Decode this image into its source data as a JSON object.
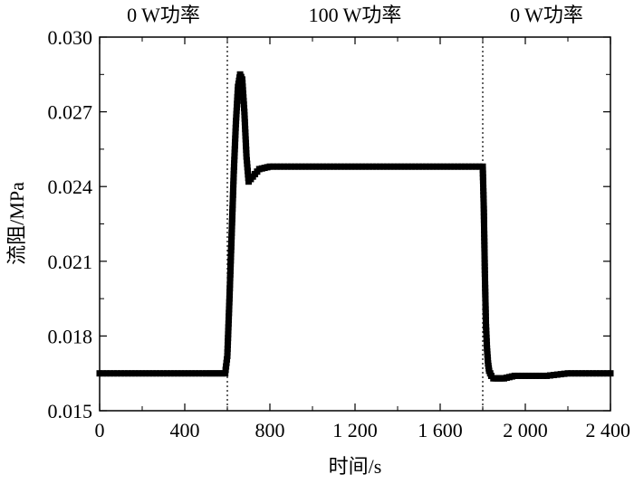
{
  "chart_data": {
    "type": "scatter",
    "title": "",
    "xlabel": "时间/s",
    "ylabel": "流阻/MPa",
    "xlim": [
      0,
      2400
    ],
    "ylim": [
      0.015,
      0.03
    ],
    "xticks": [
      0,
      400,
      800,
      1200,
      1600,
      2000,
      2400
    ],
    "xtick_labels": [
      "0",
      "400",
      "800",
      "1 200",
      "1 600",
      "2 000",
      "2 400"
    ],
    "yticks": [
      0.015,
      0.018,
      0.021,
      0.024,
      0.027,
      0.03
    ],
    "ytick_labels": [
      "0.015",
      "0.018",
      "0.021",
      "0.024",
      "0.027",
      "0.030"
    ],
    "phase_boundaries": [
      600,
      1800
    ],
    "phase_labels": [
      {
        "text": "0 W功率",
        "x": 300
      },
      {
        "text": "100 W功率",
        "x": 1200
      },
      {
        "text": "0 W功率",
        "x": 2100
      }
    ],
    "grid": false,
    "colors": {
      "series": "#000000",
      "boundary": "#000000"
    },
    "series": [
      {
        "marker": "square",
        "x": [
          0,
          100,
          200,
          300,
          400,
          500,
          590,
          600,
          610,
          620,
          630,
          640,
          650,
          660,
          670,
          680,
          690,
          700,
          720,
          750,
          800,
          900,
          1000,
          1200,
          1400,
          1600,
          1800,
          1805,
          1810,
          1815,
          1820,
          1825,
          1830,
          1835,
          1840,
          1850,
          1860,
          1870,
          1880,
          1900,
          1950,
          2000,
          2100,
          2200,
          2300,
          2400
        ],
        "y": [
          0.0165,
          0.0165,
          0.0165,
          0.0165,
          0.0165,
          0.0165,
          0.0165,
          0.0172,
          0.0195,
          0.022,
          0.0245,
          0.0265,
          0.028,
          0.0285,
          0.0283,
          0.027,
          0.0252,
          0.0242,
          0.0244,
          0.0247,
          0.0248,
          0.0248,
          0.0248,
          0.0248,
          0.0248,
          0.0248,
          0.0248,
          0.0231,
          0.0205,
          0.0185,
          0.0175,
          0.0169,
          0.0166,
          0.0165,
          0.0164,
          0.0163,
          0.0163,
          0.0163,
          0.0163,
          0.0163,
          0.0164,
          0.0164,
          0.0164,
          0.0165,
          0.0165,
          0.0165
        ]
      }
    ]
  }
}
